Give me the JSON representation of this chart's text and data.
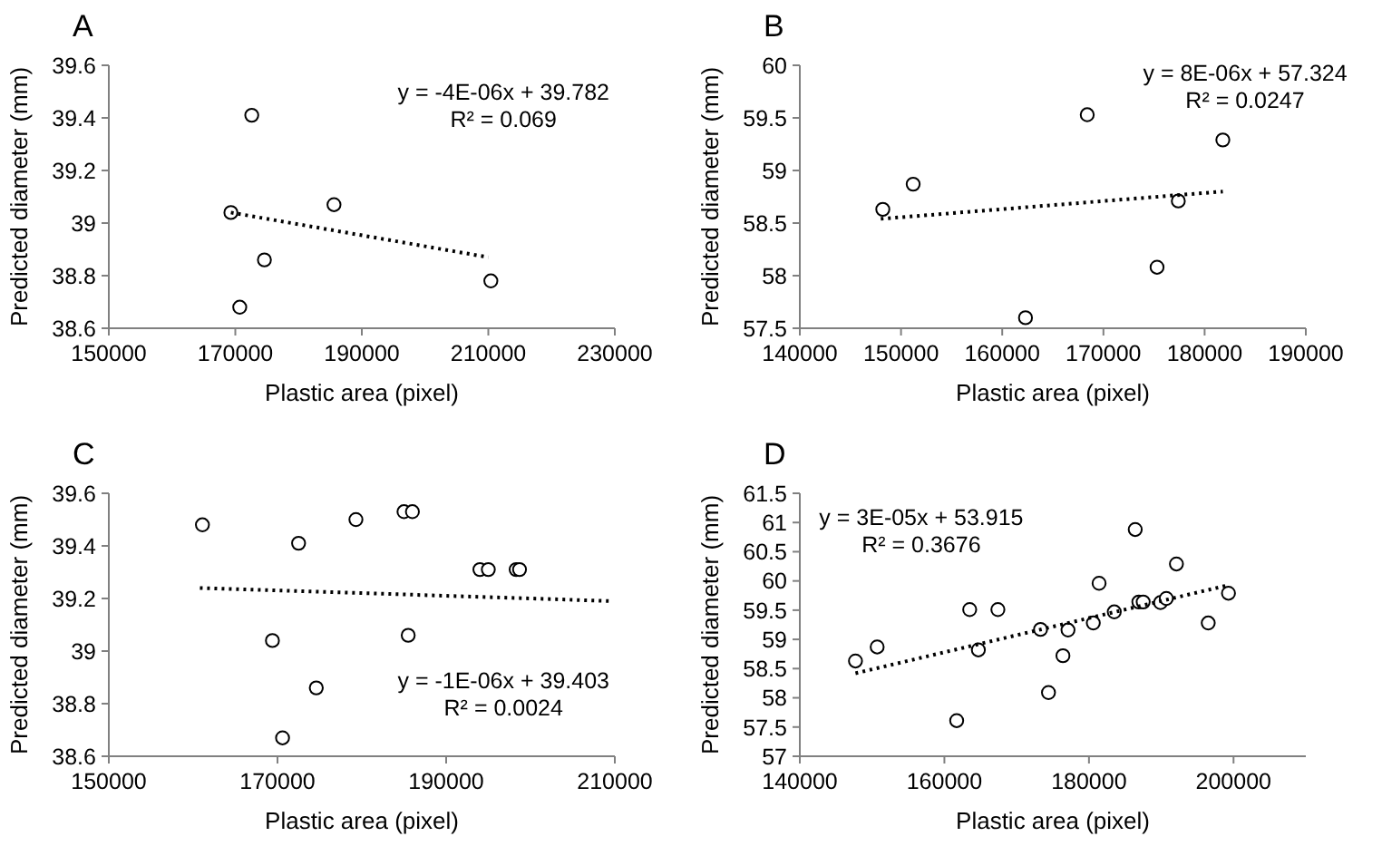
{
  "chart_data": [
    {
      "type": "scatter",
      "title": "A",
      "xlabel": "Plastic area (pixel)",
      "ylabel": "Predicted diameter (mm)",
      "xlim": [
        150000,
        230000
      ],
      "xticks": [
        150000,
        170000,
        190000,
        210000,
        230000
      ],
      "ylim": [
        38.6,
        39.6
      ],
      "yticks": [
        38.6,
        38.8,
        39,
        39.2,
        39.4,
        39.6
      ],
      "grid": false,
      "annotations": [
        "y = -4E-06x + 39.782",
        "R² = 0.069"
      ],
      "series": [
        {
          "type": "scatter",
          "marker": "circle",
          "color": "#000000",
          "x": [
            172600,
            169300,
            185600,
            174600,
            170700,
            210400
          ],
          "values": [
            39.41,
            39.04,
            39.07,
            38.86,
            38.68,
            38.78
          ]
        },
        {
          "type": "line",
          "marker": "none",
          "line_style": "dotted",
          "color": "#000000",
          "x": [
            169300,
            210000
          ],
          "values": [
            39.04,
            38.87
          ]
        }
      ]
    },
    {
      "type": "scatter",
      "title": "B",
      "xlabel": "Plastic area (pixel)",
      "ylabel": "Predicted diameter (mm)",
      "xlim": [
        140000,
        190000
      ],
      "xticks": [
        140000,
        150000,
        160000,
        170000,
        180000,
        190000
      ],
      "ylim": [
        57.5,
        60
      ],
      "yticks": [
        57.5,
        58,
        58.5,
        59,
        59.5,
        60
      ],
      "grid": false,
      "annotations": [
        "y = 8E-06x + 57.324",
        "R² = 0.0247"
      ],
      "series": [
        {
          "type": "scatter",
          "marker": "circle",
          "color": "#000000",
          "x": [
            148200,
            151200,
            168400,
            162300,
            175300,
            177400,
            181800
          ],
          "values": [
            58.63,
            58.87,
            59.53,
            57.6,
            58.08,
            58.71,
            59.29
          ]
        },
        {
          "type": "line",
          "marker": "none",
          "line_style": "dotted",
          "color": "#000000",
          "x": [
            148000,
            181800
          ],
          "values": [
            58.54,
            58.8
          ]
        }
      ]
    },
    {
      "type": "scatter",
      "title": "C",
      "xlabel": "Plastic area (pixel)",
      "ylabel": "Predicted diameter (mm)",
      "xlim": [
        150000,
        210000
      ],
      "xticks": [
        150000,
        170000,
        190000,
        210000
      ],
      "ylim": [
        38.6,
        39.6
      ],
      "yticks": [
        38.6,
        38.8,
        39,
        39.2,
        39.4,
        39.6
      ],
      "grid": false,
      "annotations": [
        "y = -1E-06x + 39.403",
        "R² = 0.0024"
      ],
      "series": [
        {
          "type": "scatter",
          "marker": "circle",
          "color": "#000000",
          "x": [
            161100,
            172500,
            179300,
            185000,
            186000,
            169400,
            174600,
            170600,
            185500,
            194000,
            195000,
            198300,
            198700
          ],
          "values": [
            39.48,
            39.41,
            39.5,
            39.53,
            39.53,
            39.04,
            38.86,
            38.67,
            39.06,
            39.31,
            39.31,
            39.31,
            39.31
          ]
        },
        {
          "type": "line",
          "marker": "none",
          "line_style": "dotted",
          "color": "#000000",
          "x": [
            160800,
            209800
          ],
          "values": [
            39.24,
            39.19
          ]
        }
      ]
    },
    {
      "type": "scatter",
      "title": "D",
      "xlabel": "Plastic area (pixel)",
      "ylabel": "Predicted diameter (mm)",
      "xlim": [
        140000,
        210000
      ],
      "xticks": [
        140000,
        160000,
        180000,
        200000
      ],
      "ylim": [
        57,
        61.5
      ],
      "yticks": [
        57,
        57.5,
        58,
        58.5,
        59,
        59.5,
        60,
        60.5,
        61,
        61.5
      ],
      "grid": false,
      "annotations": [
        "y = 3E-05x + 53.915",
        "R² = 0.3676"
      ],
      "series": [
        {
          "type": "scatter",
          "marker": "circle",
          "color": "#000000",
          "x": [
            147700,
            150700,
            161700,
            163500,
            164700,
            167400,
            173300,
            174400,
            176400,
            177100,
            180600,
            181400,
            183500,
            186400,
            186900,
            187500,
            189900,
            190700,
            192100,
            196500,
            199300
          ],
          "values": [
            58.63,
            58.87,
            57.61,
            59.51,
            58.82,
            59.51,
            59.17,
            58.09,
            58.72,
            59.16,
            59.28,
            59.96,
            59.47,
            60.88,
            59.64,
            59.64,
            59.63,
            59.7,
            60.29,
            59.28,
            59.79
          ]
        },
        {
          "type": "line",
          "marker": "none",
          "line_style": "dotted",
          "color": "#000000",
          "x": [
            147700,
            199000
          ],
          "values": [
            58.42,
            59.92
          ]
        }
      ]
    }
  ]
}
